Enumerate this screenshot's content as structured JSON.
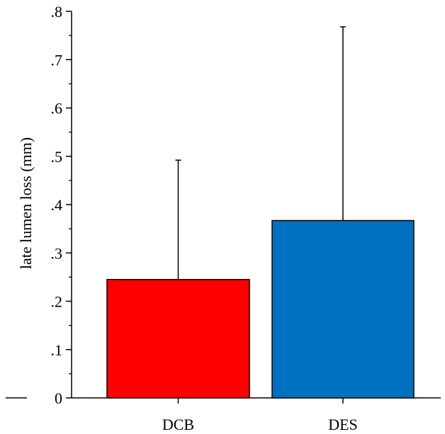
{
  "chart_data": {
    "type": "bar",
    "categories": [
      "DCB",
      "DES"
    ],
    "values": [
      0.245,
      0.367
    ],
    "error_upper": [
      0.492,
      0.768
    ],
    "colors": [
      "#ff0000",
      "#0070c0"
    ],
    "title": "",
    "xlabel": "",
    "ylabel": "late lumen loss (mm)",
    "ylim": [
      0,
      0.8
    ],
    "ytick_values": [
      0,
      0.1,
      0.2,
      0.3,
      0.4,
      0.5,
      0.6,
      0.7,
      0.8
    ],
    "ytick_labels": [
      "0",
      ".1",
      ".2",
      ".3",
      ".4",
      ".5",
      ".6",
      ".7",
      ".8"
    ],
    "grid": false,
    "legend": "none"
  }
}
